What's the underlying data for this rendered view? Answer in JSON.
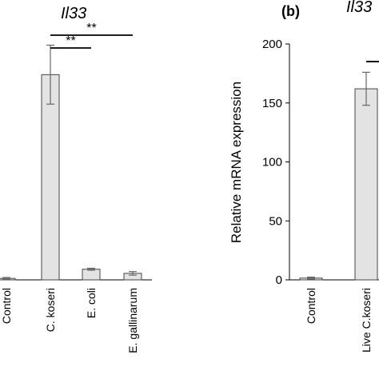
{
  "chart_data": [
    {
      "type": "bar",
      "title": "Il33",
      "categories": [
        "Control",
        "C. koseri",
        "E. coli",
        "E. gallinarum"
      ],
      "values": [
        1.2,
        174,
        9,
        5.5
      ],
      "errors": [
        0.8,
        25,
        0.8,
        1.5
      ],
      "significance": [
        {
          "label": "**",
          "from": "C. koseri",
          "to": "E. coli"
        },
        {
          "label": "**",
          "from": "C. koseri",
          "to": "E. gallinarum"
        }
      ],
      "ylim": [
        0,
        200
      ],
      "bar_color": "#e3e3e3"
    },
    {
      "type": "bar",
      "panel_label": "(b)",
      "title": "Il33",
      "categories": [
        "Control",
        "Live C.koseri"
      ],
      "values": [
        1.5,
        162
      ],
      "errors": [
        0.8,
        14
      ],
      "ylabel": "Relative mRNA expression",
      "ylim": [
        0,
        200
      ],
      "yticks": [
        0,
        50,
        100,
        150,
        200
      ],
      "bar_color": "#e3e3e3"
    }
  ]
}
